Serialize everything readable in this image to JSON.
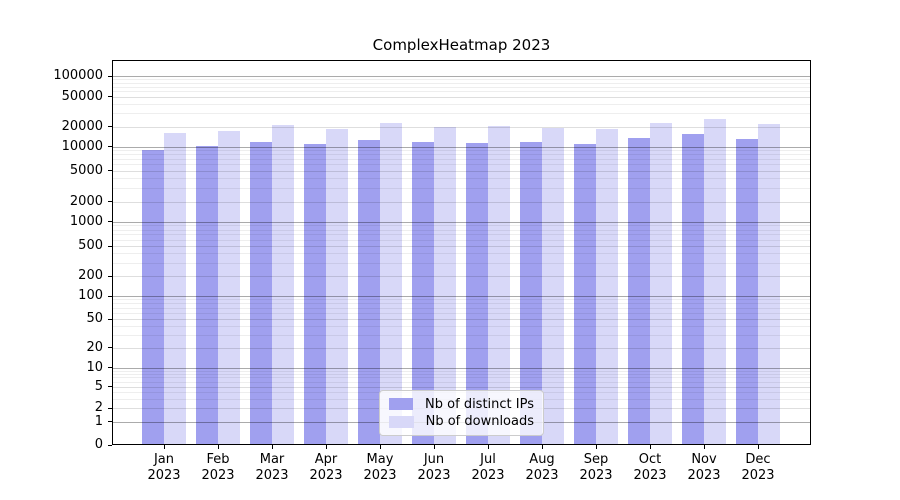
{
  "chart_data": {
    "type": "bar",
    "title": "ComplexHeatmap 2023",
    "x_months": [
      "Jan",
      "Feb",
      "Mar",
      "Apr",
      "May",
      "Jun",
      "Jul",
      "Aug",
      "Sep",
      "Oct",
      "Nov",
      "Dec"
    ],
    "x_year": "2023",
    "series": [
      {
        "name": "Nb of distinct IPs",
        "color": "#a0a0ef",
        "values": [
          9100,
          10200,
          11900,
          10900,
          12600,
          11600,
          11400,
          11900,
          11000,
          13400,
          15500,
          13000
        ]
      },
      {
        "name": "Nb of downloads",
        "color": "#d8d8f8",
        "values": [
          15900,
          17200,
          20900,
          18700,
          22200,
          19600,
          20400,
          19300,
          18300,
          22200,
          25300,
          21500
        ]
      }
    ],
    "y_axis": {
      "scale": "log-like",
      "ticks": [
        0,
        1,
        2,
        5,
        10,
        20,
        50,
        100,
        200,
        500,
        1000,
        2000,
        5000,
        10000,
        20000,
        50000,
        100000
      ]
    },
    "legend": {
      "position": "lower center",
      "items": [
        "Nb of distinct IPs",
        "Nb of downloads"
      ]
    },
    "grid": true
  }
}
